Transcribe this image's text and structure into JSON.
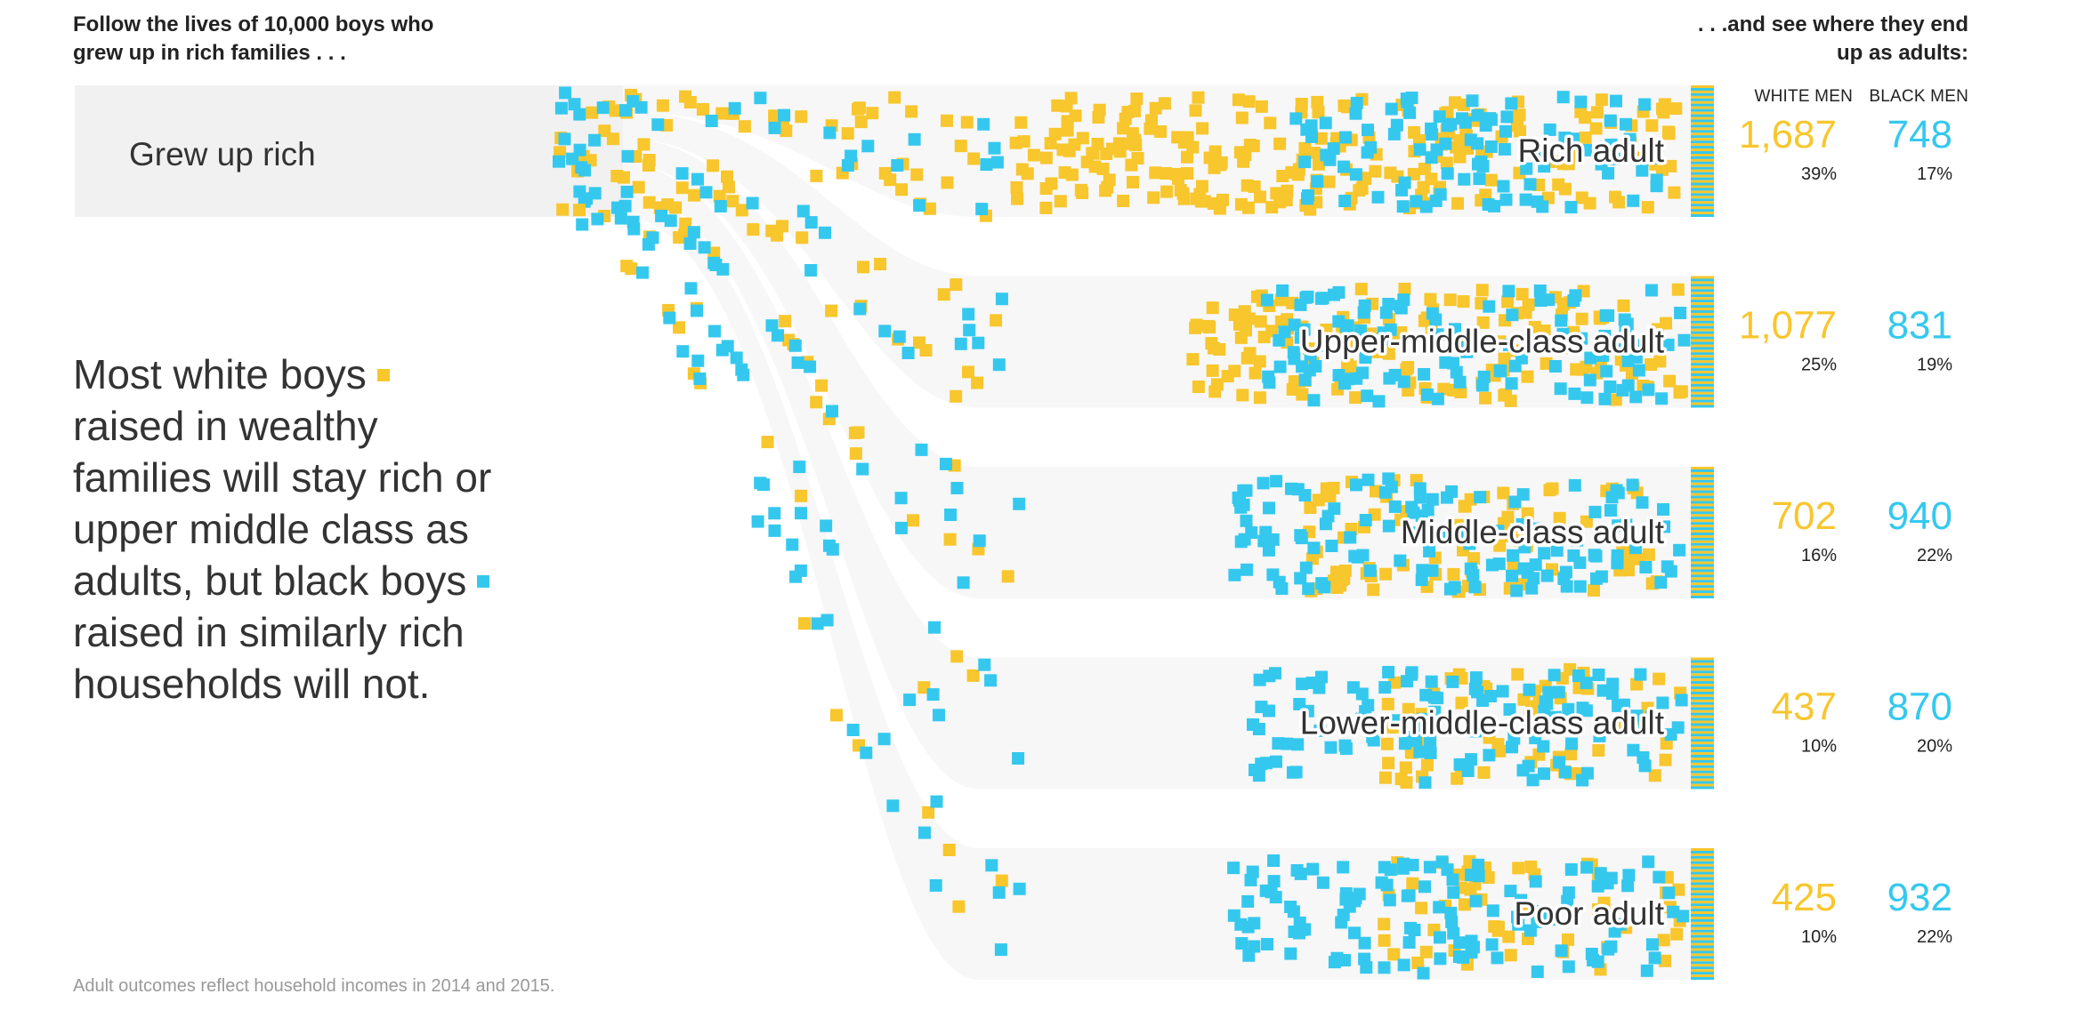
{
  "intro": {
    "line1_prefix": "Follow the lives of ",
    "line1_number": "10,000",
    "line1_suffix": " boys who",
    "line2": "grew up in rich families . . ."
  },
  "outro": {
    "line1": ". . .and see where they end",
    "line2": "up as adults:"
  },
  "column_headers": {
    "white": "WHITE MEN",
    "black": "BLACK MEN"
  },
  "main_text": {
    "part1": "Most white boys",
    "part2": "raised in wealthy families will stay rich or upper middle class as adults, but black boys",
    "part3": "raised in similarly rich households will not."
  },
  "footnote": "Adult outcomes reflect household incomes in 2014 and 2015.",
  "colors": {
    "white": "#f8c62d",
    "black": "#35c8ee",
    "band": "#f1f1f1",
    "band_light": "#f7f7f7"
  },
  "chart_data": {
    "type": "flow",
    "origin": "Grew up rich",
    "total_per_group": 10000,
    "groups": [
      "White men",
      "Black men"
    ],
    "outcomes": [
      {
        "label": "Rich adult",
        "white": 1687,
        "white_pct": "39%",
        "black": 748,
        "black_pct": "17%"
      },
      {
        "label": "Upper-middle-class adult",
        "white": 1077,
        "white_pct": "25%",
        "black": 831,
        "black_pct": "19%"
      },
      {
        "label": "Middle-class adult",
        "white": 702,
        "white_pct": "16%",
        "black": 940,
        "black_pct": "22%"
      },
      {
        "label": "Lower-middle-class adult",
        "white": 437,
        "white_pct": "10%",
        "black": 870,
        "black_pct": "20%"
      },
      {
        "label": "Poor adult",
        "white": 425,
        "white_pct": "10%",
        "black": 932,
        "black_pct": "22%"
      }
    ]
  }
}
